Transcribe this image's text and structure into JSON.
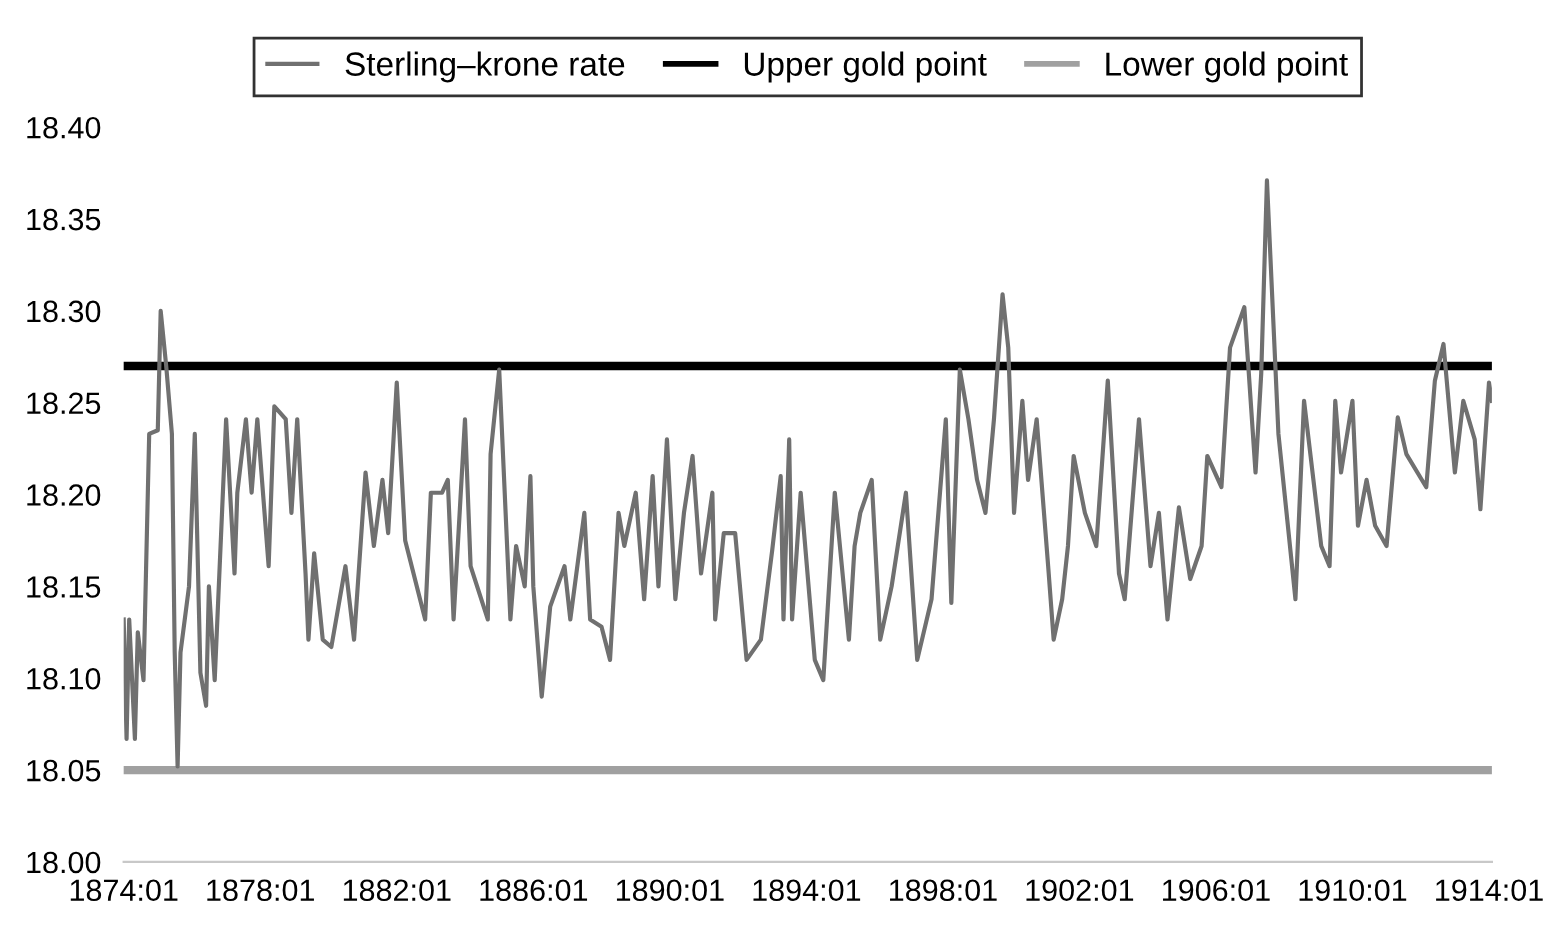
{
  "chart_data": {
    "type": "line",
    "legend": "top",
    "grid": false,
    "marker": "none",
    "line_style": "solid",
    "xlim": [
      "1874-01",
      "1914-02"
    ],
    "xticks": [
      {
        "value": "1874-01",
        "label": "1874:01"
      },
      {
        "value": "1878-01",
        "label": "1878:01"
      },
      {
        "value": "1882-01",
        "label": "1882:01"
      },
      {
        "value": "1886-01",
        "label": "1886:01"
      },
      {
        "value": "1890-01",
        "label": "1890:01"
      },
      {
        "value": "1894-01",
        "label": "1894:01"
      },
      {
        "value": "1898-01",
        "label": "1898:01"
      },
      {
        "value": "1902-01",
        "label": "1902:01"
      },
      {
        "value": "1906-01",
        "label": "1906:01"
      },
      {
        "value": "1910-01",
        "label": "1910:01"
      },
      {
        "value": "1914-01",
        "label": "1914:01"
      }
    ],
    "ylim": [
      18.0,
      18.4
    ],
    "yticks": [
      {
        "value": 18.0,
        "label": "18.00"
      },
      {
        "value": 18.05,
        "label": "18.05"
      },
      {
        "value": 18.1,
        "label": "18.10"
      },
      {
        "value": 18.15,
        "label": "18.15"
      },
      {
        "value": 18.2,
        "label": "18.20"
      },
      {
        "value": 18.25,
        "label": "18.25"
      },
      {
        "value": 18.3,
        "label": "18.30"
      },
      {
        "value": 18.35,
        "label": "18.35"
      },
      {
        "value": 18.4,
        "label": "18.40"
      }
    ],
    "series": [
      {
        "name": "Sterling–krone rate",
        "color": "#707070",
        "x": [
          "1874-01",
          "1874-02",
          "1874-03",
          "1874-05",
          "1874-06",
          "1874-08",
          "1874-10",
          "1875-01",
          "1875-02",
          "1875-04",
          "1875-06",
          "1875-07",
          "1875-08",
          "1875-09",
          "1875-12",
          "1876-02",
          "1876-04",
          "1876-06",
          "1876-07",
          "1876-09",
          "1877-01",
          "1877-04",
          "1877-05",
          "1877-08",
          "1877-10",
          "1877-12",
          "1878-04",
          "1878-06",
          "1878-10",
          "1878-12",
          "1879-02",
          "1879-05",
          "1879-06",
          "1879-08",
          "1879-11",
          "1880-02",
          "1880-07",
          "1880-10",
          "1881-02",
          "1881-05",
          "1881-08",
          "1881-10",
          "1882-01",
          "1882-04",
          "1882-11",
          "1883-01",
          "1883-05",
          "1883-07",
          "1883-09",
          "1884-01",
          "1884-03",
          "1884-09",
          "1884-10",
          "1885-01",
          "1885-05",
          "1885-07",
          "1885-10",
          "1885-12",
          "1886-01",
          "1886-04",
          "1886-07",
          "1886-12",
          "1887-02",
          "1887-07",
          "1887-09",
          "1888-01",
          "1888-04",
          "1888-07",
          "1888-09",
          "1889-01",
          "1889-04",
          "1889-07",
          "1889-09",
          "1889-12",
          "1890-03",
          "1890-06",
          "1890-09",
          "1890-12",
          "1891-04",
          "1891-05",
          "1891-08",
          "1891-12",
          "1892-04",
          "1892-09",
          "1893-01",
          "1893-04",
          "1893-05",
          "1893-07",
          "1893-08",
          "1893-11",
          "1894-04",
          "1894-07",
          "1894-11",
          "1895-04",
          "1895-06",
          "1895-08",
          "1895-12",
          "1896-03",
          "1896-07",
          "1896-12",
          "1897-04",
          "1897-09",
          "1898-02",
          "1898-04",
          "1898-07",
          "1898-10",
          "1899-01",
          "1899-04",
          "1899-07",
          "1899-10",
          "1899-12",
          "1900-02",
          "1900-05",
          "1900-07",
          "1900-10",
          "1901-02",
          "1901-04",
          "1901-07",
          "1901-09",
          "1901-11",
          "1902-03",
          "1902-07",
          "1902-11",
          "1903-03",
          "1903-05",
          "1903-10",
          "1904-02",
          "1904-05",
          "1904-08",
          "1904-12",
          "1905-04",
          "1905-08",
          "1905-10",
          "1906-03",
          "1906-06",
          "1906-11",
          "1907-03",
          "1907-05",
          "1907-07",
          "1907-11",
          "1908-05",
          "1908-08",
          "1909-02",
          "1909-05",
          "1909-07",
          "1909-09",
          "1910-01",
          "1910-03",
          "1910-06",
          "1910-09",
          "1911-01",
          "1911-05",
          "1911-08",
          "1912-03",
          "1912-06",
          "1912-09",
          "1913-01",
          "1913-04",
          "1913-08",
          "1913-10",
          "1914-01",
          "1914-02"
        ],
        "values": [
          18.132,
          18.067,
          18.132,
          18.067,
          18.125,
          18.099,
          18.233,
          18.235,
          18.3,
          18.27,
          18.233,
          18.114,
          18.052,
          18.114,
          18.15,
          18.233,
          18.103,
          18.085,
          18.15,
          18.099,
          18.241,
          18.157,
          18.201,
          18.241,
          18.201,
          18.241,
          18.161,
          18.248,
          18.241,
          18.19,
          18.241,
          18.157,
          18.121,
          18.168,
          18.121,
          18.117,
          18.161,
          18.121,
          18.212,
          18.172,
          18.208,
          18.179,
          18.261,
          18.175,
          18.132,
          18.201,
          18.201,
          18.208,
          18.132,
          18.241,
          18.161,
          18.132,
          18.222,
          18.268,
          18.132,
          18.172,
          18.15,
          18.21,
          18.15,
          18.09,
          18.139,
          18.161,
          18.132,
          18.19,
          18.132,
          18.128,
          18.11,
          18.19,
          18.172,
          18.201,
          18.143,
          18.21,
          18.15,
          18.23,
          18.143,
          18.19,
          18.221,
          18.157,
          18.201,
          18.132,
          18.179,
          18.179,
          18.11,
          18.121,
          18.17,
          18.21,
          18.132,
          18.23,
          18.132,
          18.201,
          18.11,
          18.099,
          18.201,
          18.121,
          18.172,
          18.19,
          18.208,
          18.121,
          18.15,
          18.201,
          18.11,
          18.143,
          18.241,
          18.141,
          18.268,
          18.241,
          18.208,
          18.19,
          18.241,
          18.309,
          18.28,
          18.19,
          18.251,
          18.208,
          18.241,
          18.161,
          18.121,
          18.143,
          18.172,
          18.221,
          18.19,
          18.172,
          18.262,
          18.157,
          18.143,
          18.241,
          18.161,
          18.19,
          18.132,
          18.193,
          18.154,
          18.172,
          18.221,
          18.204,
          18.28,
          18.302,
          18.212,
          18.266,
          18.371,
          18.233,
          18.143,
          18.251,
          18.172,
          18.161,
          18.251,
          18.212,
          18.251,
          18.183,
          18.208,
          18.183,
          18.172,
          18.242,
          18.222,
          18.204,
          18.262,
          18.282,
          18.212,
          18.251,
          18.23,
          18.192,
          18.261,
          18.251
        ]
      }
    ],
    "ref_lines": [
      {
        "axis": "y",
        "value": 18.27,
        "label": "Upper gold point",
        "color": "#000000",
        "line_style": "solid"
      },
      {
        "axis": "y",
        "value": 18.05,
        "label": "Lower gold point",
        "color": "#a0a0a0",
        "line_style": "solid"
      }
    ]
  }
}
